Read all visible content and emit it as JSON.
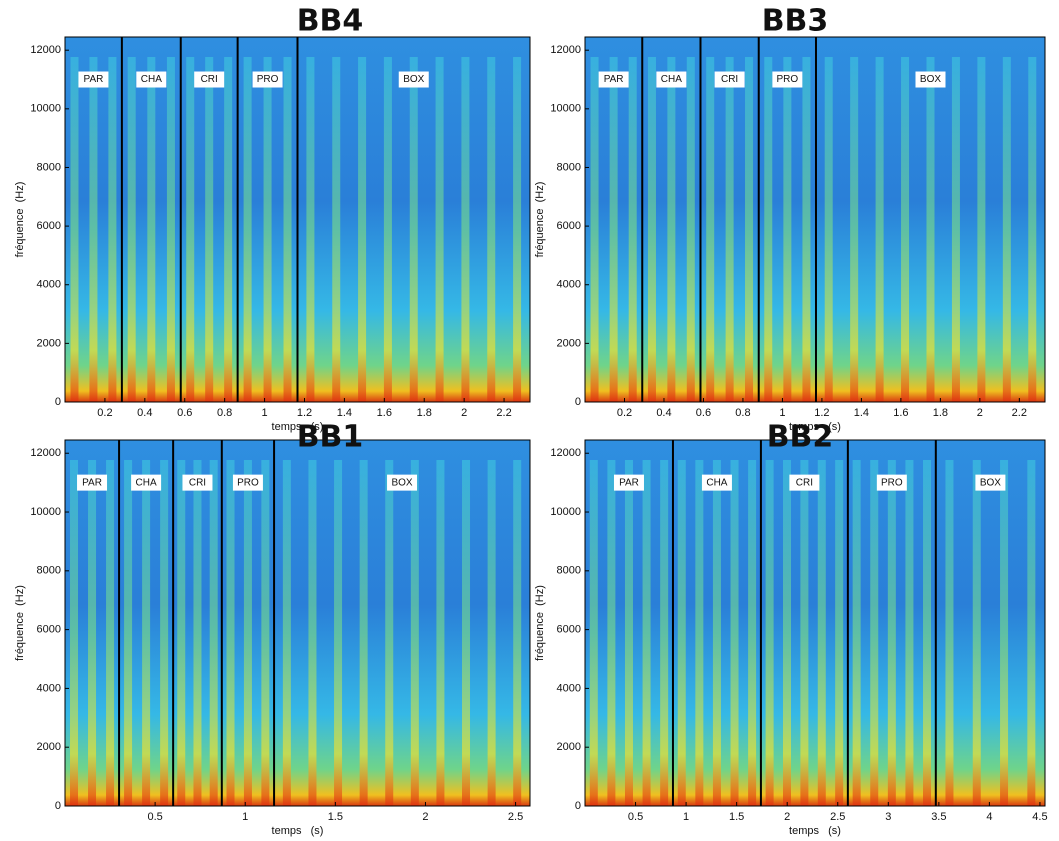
{
  "chart_data": [
    {
      "type": "spectrogram",
      "title": "BB4",
      "xlabel": "temps   (s)",
      "ylabel": "fréquence  (Hz)",
      "xlim": [
        0,
        2.33
      ],
      "ylim": [
        0,
        12450
      ],
      "xticks": [
        0.2,
        0.4,
        0.6,
        0.8,
        1,
        1.2,
        1.4,
        1.6,
        1.8,
        2,
        2.2
      ],
      "yticks": [
        0,
        2000,
        4000,
        6000,
        8000,
        10000,
        12000
      ],
      "segments": [
        "PAR",
        "CHA",
        "CRI",
        "PRO",
        "BOX"
      ],
      "boundaries": [
        0.285,
        0.58,
        0.865,
        1.165
      ]
    },
    {
      "type": "spectrogram",
      "title": "BB3",
      "xlabel": "temps   (s)",
      "ylabel": "fréquence  (Hz)",
      "xlim": [
        0,
        2.33
      ],
      "ylim": [
        0,
        12450
      ],
      "xticks": [
        0.2,
        0.4,
        0.6,
        0.8,
        1,
        1.2,
        1.4,
        1.6,
        1.8,
        2,
        2.2
      ],
      "yticks": [
        0,
        2000,
        4000,
        6000,
        8000,
        10000,
        12000
      ],
      "segments": [
        "PAR",
        "CHA",
        "CRI",
        "PRO",
        "BOX"
      ],
      "boundaries": [
        0.29,
        0.585,
        0.88,
        1.17
      ]
    },
    {
      "type": "spectrogram",
      "title": "BB1",
      "xlabel": "temps   (s)",
      "ylabel": "fréquence  (Hz)",
      "xlim": [
        0,
        2.58
      ],
      "ylim": [
        0,
        12450
      ],
      "xticks": [
        0.5,
        1,
        1.5,
        2,
        2.5
      ],
      "yticks": [
        0,
        2000,
        4000,
        6000,
        8000,
        10000,
        12000
      ],
      "segments": [
        "PAR",
        "CHA",
        "CRI",
        "PRO",
        "BOX"
      ],
      "boundaries": [
        0.3,
        0.6,
        0.87,
        1.16
      ]
    },
    {
      "type": "spectrogram",
      "title": "BB2",
      "xlabel": "temps   (s)",
      "ylabel": "fréquence  (Hz)",
      "xlim": [
        0,
        4.55
      ],
      "ylim": [
        0,
        12450
      ],
      "xticks": [
        0.5,
        1,
        1.5,
        2,
        2.5,
        3,
        3.5,
        4,
        4.5
      ],
      "yticks": [
        0,
        2000,
        4000,
        6000,
        8000,
        10000,
        12000
      ],
      "segments": [
        "PAR",
        "CHA",
        "CRI",
        "PRO",
        "BOX"
      ],
      "boundaries": [
        0.87,
        1.74,
        2.6,
        3.47
      ]
    }
  ]
}
